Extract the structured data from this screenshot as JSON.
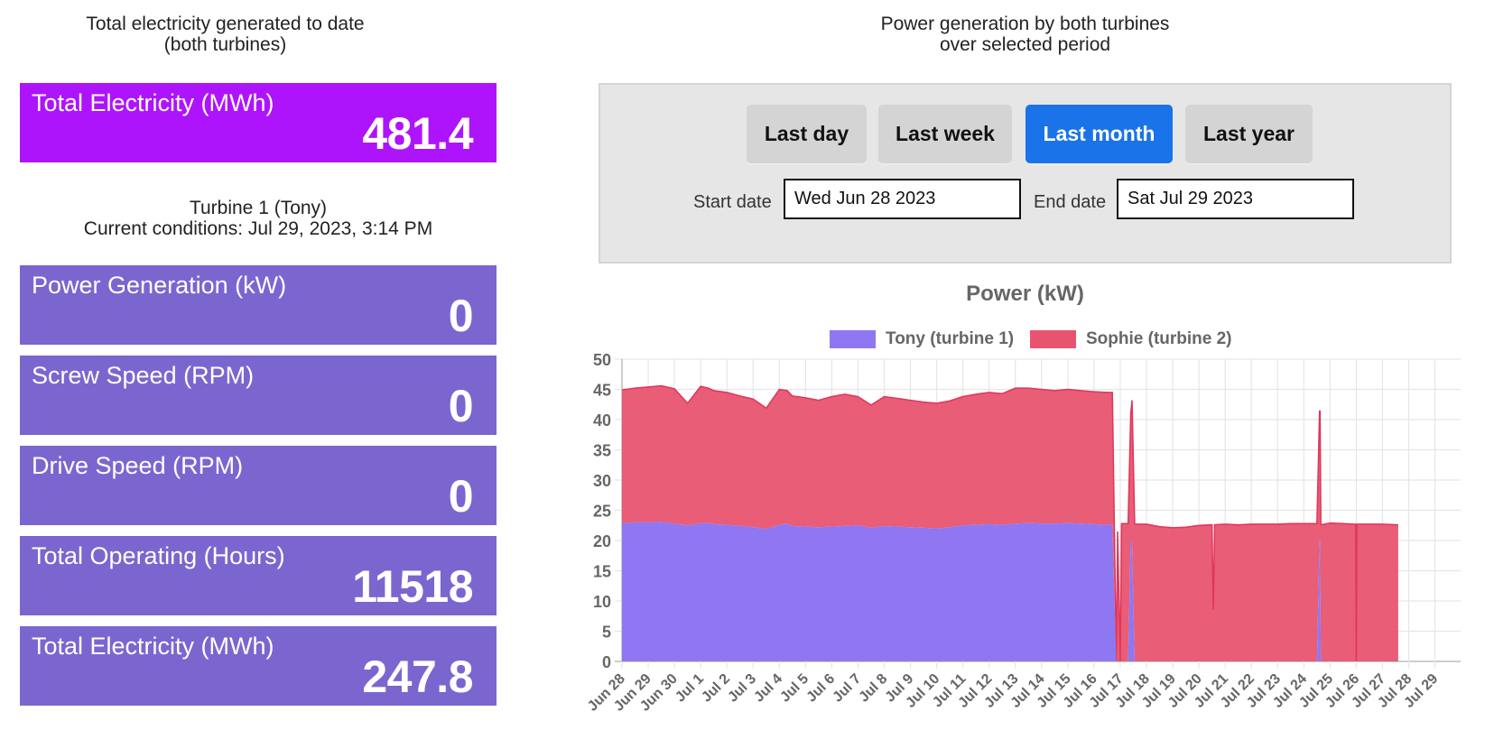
{
  "left": {
    "overall_heading_line1": "Total electricity generated to date",
    "overall_heading_line2": "(both turbines)",
    "overall_card": {
      "label": "Total Electricity (MWh)",
      "value": "481.4",
      "color": "#ae14fb"
    },
    "turbine_heading_line1": "Turbine 1 (Tony)",
    "turbine_heading_line2": "Current conditions: Jul 29, 2023, 3:14 PM",
    "card_color": "#7b66d0",
    "cards": [
      {
        "label": "Power Generation (kW)",
        "value": "0"
      },
      {
        "label": "Screw Speed (RPM)",
        "value": "0"
      },
      {
        "label": "Drive Speed (RPM)",
        "value": "0"
      },
      {
        "label": "Total Operating (Hours)",
        "value": "11518"
      },
      {
        "label": "Total Electricity (MWh)",
        "value": "247.8"
      }
    ]
  },
  "right": {
    "heading_line1": "Power generation by both turbines",
    "heading_line2": "over selected period",
    "period_buttons": [
      {
        "label": "Last day",
        "active": false
      },
      {
        "label": "Last week",
        "active": false
      },
      {
        "label": "Last month",
        "active": true
      },
      {
        "label": "Last year",
        "active": false
      }
    ],
    "active_color": "#1a73e8",
    "start_date_label": "Start date",
    "start_date_value": "Wed Jun 28 2023",
    "end_date_label": "End date",
    "end_date_value": "Sat Jul 29 2023"
  },
  "chart_data": {
    "type": "area",
    "stacked": true,
    "title": "Power (kW)",
    "xlabel": "",
    "ylabel": "",
    "ylim": [
      0,
      50
    ],
    "yticks": [
      0,
      5,
      10,
      15,
      20,
      25,
      30,
      35,
      40,
      45,
      50
    ],
    "grid": true,
    "legend_position": "top",
    "categories": [
      "Jun 28",
      "Jun 29",
      "Jun 30",
      "Jul 1",
      "Jul 2",
      "Jul 3",
      "Jul 4",
      "Jul 5",
      "Jul 6",
      "Jul 7",
      "Jul 8",
      "Jul 9",
      "Jul 10",
      "Jul 11",
      "Jul 12",
      "Jul 13",
      "Jul 14",
      "Jul 15",
      "Jul 16",
      "Jul 17",
      "Jul 18",
      "Jul 19",
      "Jul 20",
      "Jul 21",
      "Jul 22",
      "Jul 23",
      "Jul 24",
      "Jul 25",
      "Jul 26",
      "Jul 27",
      "Jul 28",
      "Jul 29"
    ],
    "x_days": [
      0,
      0.5,
      1,
      1.5,
      2,
      2.5,
      3,
      3.3,
      3.5,
      4,
      4.5,
      5,
      5.5,
      6,
      6.3,
      6.5,
      7,
      7.5,
      8,
      8.5,
      9,
      9.5,
      10,
      10.5,
      11,
      11.5,
      12,
      12.5,
      13,
      13.5,
      14,
      14.5,
      15,
      15.5,
      16,
      16.5,
      17,
      17.5,
      18,
      18.5,
      18.7,
      18.85,
      18.9,
      19.0,
      19.05,
      19.15,
      19.3,
      19.4,
      19.45,
      19.55,
      19.6,
      20,
      20.5,
      21,
      21.5,
      22,
      22.5,
      22.55,
      22.6,
      23,
      23.5,
      24,
      24.5,
      25,
      25.5,
      26,
      26.5,
      26.6,
      26.62,
      26.65,
      27,
      27.5,
      27.98,
      28,
      28.02,
      28.5,
      29,
      29.6
    ],
    "series": [
      {
        "name": "Tony (turbine 1)",
        "color": "#8f77f2",
        "values": [
          22.9,
          23.0,
          23.0,
          23.1,
          22.8,
          22.5,
          22.9,
          22.9,
          22.7,
          22.6,
          22.4,
          22.2,
          21.9,
          22.6,
          22.8,
          22.4,
          22.3,
          22.2,
          22.3,
          22.4,
          22.5,
          22.1,
          22.4,
          22.3,
          22.2,
          22.1,
          22.0,
          22.2,
          22.5,
          22.6,
          22.7,
          22.6,
          22.8,
          22.9,
          22.8,
          22.8,
          22.9,
          22.8,
          22.7,
          22.6,
          22.6,
          0,
          0,
          0,
          0,
          0,
          0,
          20,
          20,
          0,
          0,
          0,
          0,
          0,
          0,
          0,
          0,
          0,
          0,
          0,
          0,
          0,
          0,
          0,
          0,
          0,
          0,
          20,
          20,
          0,
          0,
          0,
          0,
          0,
          0,
          0,
          0,
          0
        ]
      },
      {
        "name": "Sophie (turbine 2)",
        "color": "#e8546f",
        "values": [
          22.0,
          22.2,
          22.4,
          22.5,
          22.3,
          20.2,
          22.6,
          22.3,
          22.1,
          21.9,
          21.5,
          21.2,
          20.0,
          22.4,
          22.0,
          21.5,
          21.3,
          21.0,
          21.5,
          21.8,
          21.3,
          20.3,
          21.4,
          21.2,
          21.0,
          20.8,
          20.7,
          20.9,
          21.3,
          21.6,
          21.8,
          21.7,
          22.4,
          22.3,
          22.2,
          22.0,
          22.1,
          22.0,
          21.9,
          21.9,
          21.9,
          0,
          21.5,
          0,
          22.8,
          22.8,
          22.8,
          21.0,
          23.2,
          22.8,
          22.7,
          22.7,
          22.3,
          22.1,
          22.2,
          22.5,
          22.6,
          8.5,
          22.6,
          22.7,
          22.6,
          22.7,
          22.7,
          22.7,
          22.8,
          22.8,
          22.8,
          21.4,
          21.4,
          22.6,
          22.9,
          22.8,
          22.7,
          0,
          22.7,
          22.7,
          22.7,
          22.6
        ]
      }
    ]
  }
}
